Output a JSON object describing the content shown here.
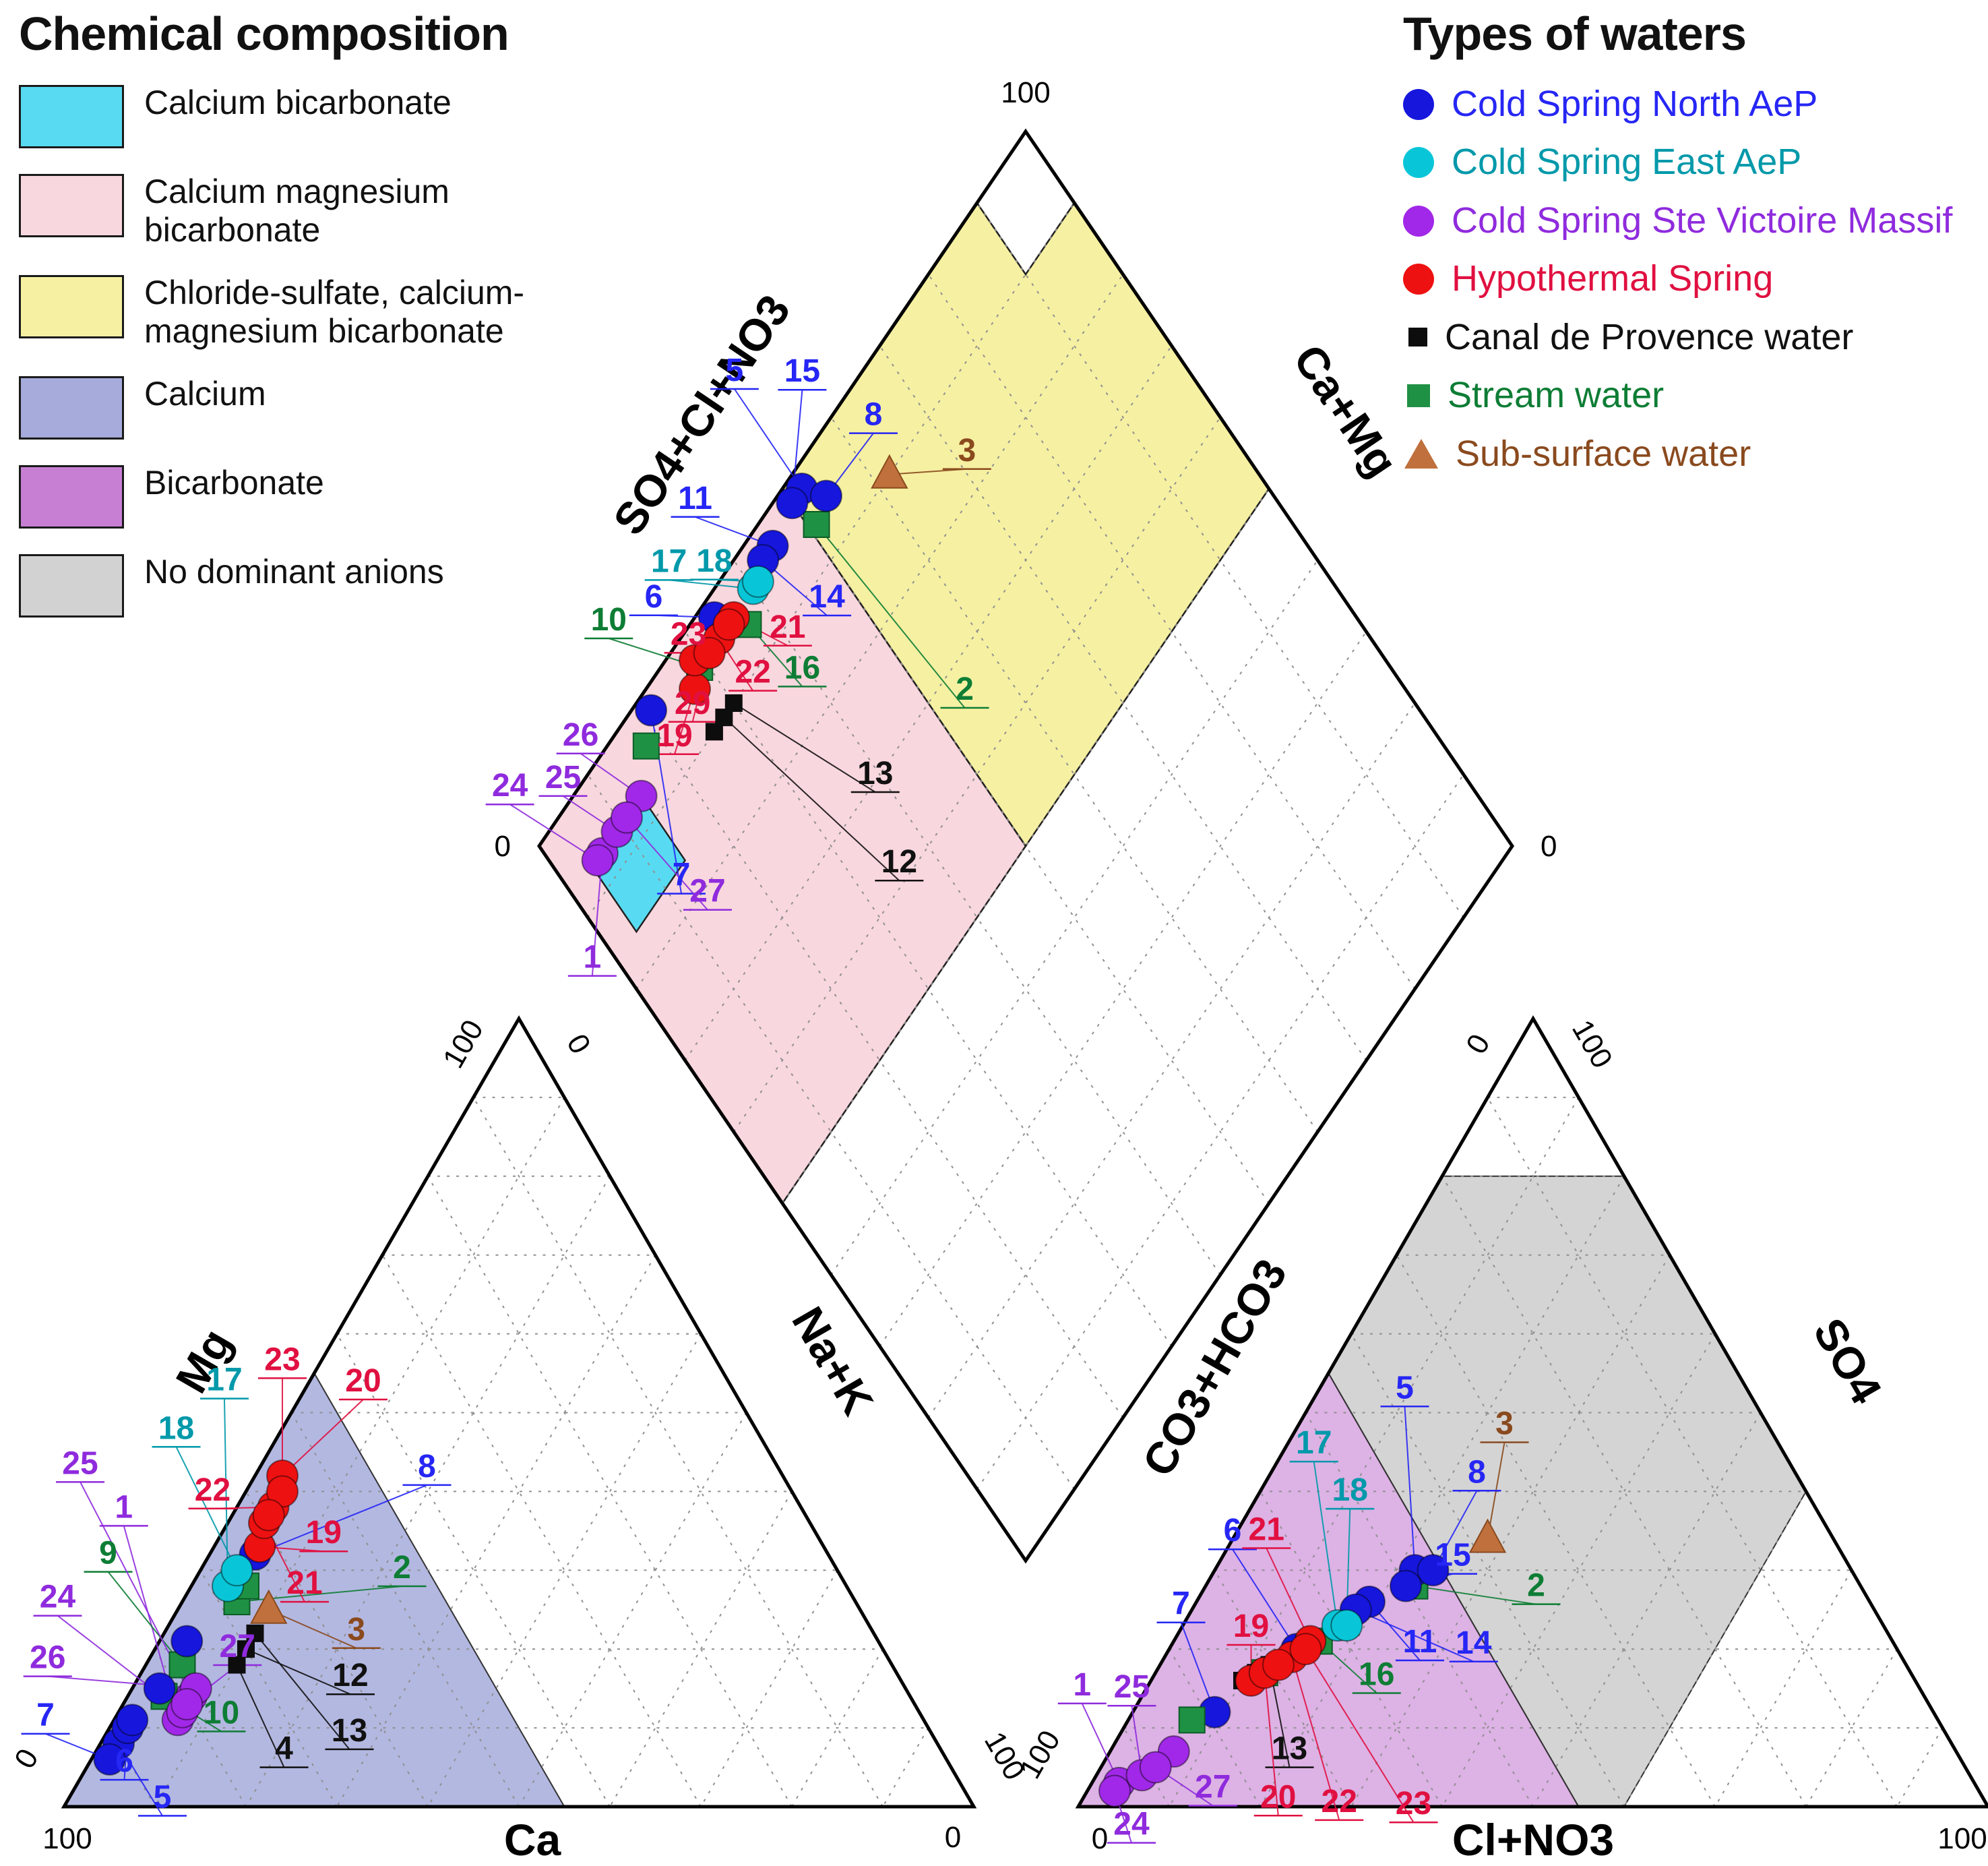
{
  "title_left": "Chemical composition",
  "title_right": "Types of waters",
  "composition_legend": [
    {
      "name": "calcium-bicarbonate",
      "label": "Calcium bicarbonate",
      "color": "#58dbf2"
    },
    {
      "name": "calcium-magnesium-bicarbonate",
      "label": "Calcium magnesium bicarbonate",
      "color": "#f9d7de"
    },
    {
      "name": "chloride-sulfate-calcium-magnesium-bicarbonate",
      "label": "Chloride-sulfate, calcium-magnesium bicarbonate",
      "color": "#f6f0a2"
    },
    {
      "name": "calcium",
      "label": "Calcium",
      "color": "#a6abdc"
    },
    {
      "name": "bicarbonate",
      "label": "Bicarbonate",
      "color": "#c77fd4"
    },
    {
      "name": "no-dominant-anions",
      "label": "No dominant anions",
      "color": "#d2d2d2"
    }
  ],
  "series": {
    "north": {
      "label": "Cold Spring North AeP",
      "marker": "circle",
      "fill": "#1616dd",
      "text": "#2626f5"
    },
    "east": {
      "label": "Cold Spring East AeP",
      "marker": "circle",
      "fill": "#08c6d8",
      "text": "#0099aa"
    },
    "ste_victoire": {
      "label": "Cold Spring Ste Victoire Massif",
      "marker": "circle",
      "fill": "#a128e8",
      "text": "#8f2bdd"
    },
    "hypothermal": {
      "label": "Hypothermal Spring",
      "marker": "circle",
      "fill": "#ee1111",
      "text": "#e01040"
    },
    "canal": {
      "label": "Canal de Provence water",
      "marker": "square-small",
      "fill": "#0d0d0d",
      "text": "#111111"
    },
    "stream": {
      "label": "Stream water",
      "marker": "square",
      "fill": "#1f9144",
      "text": "#0e7d35"
    },
    "subsurface": {
      "label": "Sub-surface water",
      "marker": "triangle",
      "fill": "#c0703c",
      "text": "#8a4a1e"
    }
  },
  "types_legend_order": [
    "north",
    "east",
    "ste_victoire",
    "hypothermal",
    "canal",
    "stream",
    "subsurface"
  ],
  "chart_data": {
    "type": "piper-trilinear",
    "axis_labels": {
      "diamond_left": "SO4+Cl+NO3",
      "diamond_right": "Ca+Mg",
      "cation_left": "Mg",
      "cation_right": "Na+K",
      "cation_bottom": "Ca",
      "anion_left": "CO3+HCO3",
      "anion_right": "SO4",
      "anion_bottom": "Cl+NO3"
    },
    "ticks": [
      {
        "id": "dia-top",
        "text": "100"
      },
      {
        "id": "dia-left",
        "text": "0"
      },
      {
        "id": "dia-right",
        "text": "0"
      },
      {
        "id": "cat-apex-l",
        "text": "100"
      },
      {
        "id": "cat-apex-r",
        "text": "0"
      },
      {
        "id": "cat-bl",
        "text": "100"
      },
      {
        "id": "cat-bl-edge",
        "text": "0"
      },
      {
        "id": "cat-br",
        "text": "0"
      },
      {
        "id": "cat-br-edge",
        "text": "100"
      },
      {
        "id": "an-apex-l",
        "text": "0"
      },
      {
        "id": "an-apex-r",
        "text": "100"
      },
      {
        "id": "an-bl",
        "text": "0"
      },
      {
        "id": "an-bl-edge",
        "text": "100"
      },
      {
        "id": "an-br",
        "text": "100"
      }
    ],
    "grid_step_percent": 10,
    "regions": {
      "diamond": [
        {
          "name": "calcium-magnesium-bicarbonate",
          "color": "#f9d7de",
          "uv": [
            [
              0,
              100
            ],
            [
              50,
              100
            ],
            [
              50,
              50
            ],
            [
              0,
              50
            ]
          ]
        },
        {
          "name": "chloride-sulfate-calcium-magnesium-bicarbonate",
          "color": "#f6f0a2",
          "uv": [
            [
              50,
              100
            ],
            [
              100,
              100
            ],
            [
              100,
              50
            ],
            [
              50,
              50
            ]
          ]
        },
        {
          "name": "diamond-top-cell",
          "color": "#ffffff",
          "uv": [
            [
              90,
              100
            ],
            [
              100,
              100
            ],
            [
              100,
              90
            ],
            [
              90,
              90
            ]
          ]
        },
        {
          "name": "calcium-bicarbonate",
          "color": "#58dbf2",
          "uv": [
            [
              4,
              94
            ],
            [
              14,
              94
            ],
            [
              14,
              84
            ],
            [
              4,
              84
            ]
          ]
        }
      ],
      "cation": [
        {
          "name": "calcium",
          "color": "#a6abdc",
          "opacity": 0.85,
          "abc": [
            [
              100,
              0,
              0
            ],
            [
              45,
              55,
              0
            ],
            [
              45,
              0,
              55
            ]
          ]
        }
      ],
      "anion": [
        {
          "name": "no-dominant-anions",
          "color": "#d2d2d2",
          "opacity": 0.95,
          "abc": [
            [
              45,
              55,
              0
            ],
            [
              20,
              80,
              0
            ],
            [
              0,
              80,
              20
            ],
            [
              0,
              40,
              60
            ],
            [
              40,
              0,
              60
            ],
            [
              45,
              0,
              55
            ]
          ]
        },
        {
          "name": "bicarbonate",
          "color": "#c77fd4",
          "opacity": 0.6,
          "abc": [
            [
              100,
              0,
              0
            ],
            [
              45,
              55,
              0
            ],
            [
              45,
              0,
              55
            ]
          ]
        }
      ]
    },
    "samples": [
      {
        "id": 1,
        "series": "ste_victoire",
        "cation": {
          "ca": 82,
          "mg": 11,
          "na_k": 7
        },
        "anion": {
          "hco3": 94,
          "so4": 3,
          "cl_no3": 3
        },
        "labels": {
          "diamond": [
            -15,
            170
          ],
          "cation": [
            -80,
            -300
          ],
          "anion": [
            -55,
            -130
          ]
        }
      },
      {
        "id": 2,
        "series": "stream",
        "cation": {
          "ca": 68,
          "mg": 26,
          "na_k": 6
        },
        "anion": {
          "hco3": 49,
          "so4": 28,
          "cl_no3": 23
        },
        "labels": {
          "diamond": [
            220,
            260
          ],
          "cation": [
            245,
            -35
          ],
          "anion": [
            180,
            15
          ]
        }
      },
      {
        "id": 3,
        "series": "subsurface",
        "cation": {
          "ca": 65,
          "mg": 25,
          "na_k": 10
        },
        "anion": {
          "hco3": 38,
          "so4": 34,
          "cl_no3": 28
        },
        "labels": {
          "diamond": [
            115,
            -20
          ],
          "cation": [
            130,
            45
          ],
          "anion": [
            25,
            -155
          ]
        }
      },
      {
        "id": 4,
        "series": "canal",
        "cation": {
          "ca": 72,
          "mg": 18,
          "na_k": 10
        },
        "anion": {
          "hco3": 74,
          "so4": 16,
          "cl_no3": 10
        },
        "labels": {
          "cation": [
            70,
            140
          ]
        }
      },
      {
        "id": 5,
        "series": "north",
        "cation": {
          "ca": 90,
          "mg": 8,
          "na_k": 2
        },
        "anion": {
          "hco3": 48,
          "so4": 30,
          "cl_no3": 22
        },
        "labels": {
          "diamond": [
            -100,
            -160
          ],
          "cation": [
            65,
            95
          ],
          "anion": [
            -15,
            -255
          ]
        }
      },
      {
        "id": 6,
        "series": "north",
        "cation": {
          "ca": 88,
          "mg": 10,
          "na_k": 2
        },
        "anion": {
          "hco3": 66,
          "so4": 20,
          "cl_no3": 14
        },
        "labels": {
          "diamond": [
            -90,
            -15
          ],
          "cation": [
            -5,
            65
          ],
          "anion": [
            -95,
            -160
          ]
        }
      },
      {
        "id": 7,
        "series": "north",
        "cation": {
          "ca": 92,
          "mg": 6,
          "na_k": 2
        },
        "anion": {
          "hco3": 79,
          "so4": 12,
          "cl_no3": 9
        },
        "labels": {
          "diamond": [
            45,
            260
          ],
          "cation": [
            -95,
            -50
          ],
          "anion": [
            -50,
            -145
          ]
        }
      },
      {
        "id": 8,
        "series": "north",
        "cation": {
          "ca": 63,
          "mg": 32,
          "na_k": 5
        },
        "anion": {
          "hco3": 46,
          "so4": 30,
          "cl_no3": 24
        },
        "labels": {
          "diamond": [
            70,
            -105
          ],
          "cation": [
            255,
            -115
          ],
          "anion": [
            65,
            -130
          ]
        }
      },
      {
        "id": 9,
        "series": "stream",
        "cation": {
          "ca": 78,
          "mg": 18,
          "na_k": 4
        },
        "anion": {
          "hco3": 82,
          "so4": 11,
          "cl_no3": 7
        },
        "labels": {
          "cation": [
            -110,
            -150
          ]
        }
      },
      {
        "id": 10,
        "series": "stream",
        "cation": {
          "ca": 82,
          "mg": 14,
          "na_k": 4
        },
        "anion": {
          "hco3": 71,
          "so4": 17,
          "cl_no3": 12
        },
        "labels": {
          "diamond": [
            -135,
            -55
          ],
          "cation": [
            85,
            40
          ]
        }
      },
      {
        "id": 11,
        "series": "north",
        "cation": {
          "ca": 82,
          "mg": 15,
          "na_k": 3
        },
        "anion": {
          "hco3": 55,
          "so4": 26,
          "cl_no3": 19
        },
        "labels": {
          "diamond": [
            -115,
            -55
          ],
          "anion": [
            75,
            75
          ]
        }
      },
      {
        "id": 12,
        "series": "canal",
        "cation": {
          "ca": 70,
          "mg": 20,
          "na_k": 10
        },
        "anion": {
          "hco3": 72,
          "so4": 17,
          "cl_no3": 11
        },
        "labels": {
          "diamond": [
            260,
            230
          ],
          "cation": [
            155,
            55
          ]
        }
      },
      {
        "id": 13,
        "series": "canal",
        "cation": {
          "ca": 68,
          "mg": 22,
          "na_k": 10
        },
        "anion": {
          "hco3": 70,
          "so4": 18,
          "cl_no3": 12
        },
        "labels": {
          "diamond": [
            210,
            120
          ],
          "cation": [
            140,
            160
          ],
          "anion": [
            30,
            140
          ]
        }
      },
      {
        "id": 14,
        "series": "north",
        "cation": {
          "ca": 76,
          "mg": 21,
          "na_k": 3
        },
        "anion": {
          "hco3": 57,
          "so4": 25,
          "cl_no3": 18
        },
        "labels": {
          "diamond": [
            95,
            70
          ],
          "anion": [
            175,
            65
          ]
        }
      },
      {
        "id": 15,
        "series": "north",
        "cation": {
          "ca": 87,
          "mg": 11,
          "na_k": 2
        },
        "anion": {
          "hco3": 50,
          "so4": 28,
          "cl_no3": 22
        },
        "labels": {
          "diamond": [
            15,
            -180
          ],
          "anion": [
            70,
            -30
          ]
        }
      },
      {
        "id": 16,
        "series": "stream",
        "cation": {
          "ca": 66,
          "mg": 28,
          "na_k": 6
        },
        "anion": {
          "hco3": 63,
          "so4": 21,
          "cl_no3": 16
        },
        "labels": {
          "diamond": [
            80,
            80
          ],
          "anion": [
            85,
            65
          ]
        }
      },
      {
        "id": 17,
        "series": "east",
        "cation": {
          "ca": 68,
          "mg": 28,
          "na_k": 4
        },
        "anion": {
          "hco3": 60,
          "so4": 23,
          "cl_no3": 17
        },
        "labels": {
          "diamond": [
            -125,
            -25
          ],
          "cation": [
            -5,
            -290
          ],
          "anion": [
            -35,
            -255
          ]
        }
      },
      {
        "id": 18,
        "series": "east",
        "cation": {
          "ca": 66,
          "mg": 30,
          "na_k": 4
        },
        "anion": {
          "hco3": 59,
          "so4": 23,
          "cl_no3": 18
        },
        "labels": {
          "diamond": [
            -65,
            -15
          ],
          "cation": [
            -90,
            -195
          ],
          "anion": [
            5,
            -185
          ]
        }
      },
      {
        "id": 19,
        "series": "hypothermal",
        "cation": {
          "ca": 62,
          "mg": 33,
          "na_k": 5
        },
        "anion": {
          "hco3": 73,
          "so4": 16,
          "cl_no3": 11
        },
        "labels": {
          "diamond": [
            -30,
            85
          ],
          "cation": [
            95,
            -5
          ],
          "anion": [
            0,
            -65
          ]
        }
      },
      {
        "id": 20,
        "series": "hypothermal",
        "cation": {
          "ca": 55,
          "mg": 42,
          "na_k": 3
        },
        "anion": {
          "hco3": 71,
          "so4": 17,
          "cl_no3": 12
        },
        "labels": {
          "cation": [
            120,
            -125
          ],
          "anion": [
            20,
            200
          ]
        }
      },
      {
        "id": 21,
        "series": "hypothermal",
        "cation": {
          "ca": 60,
          "mg": 36,
          "na_k": 4
        },
        "anion": {
          "hco3": 64,
          "so4": 21,
          "cl_no3": 15
        },
        "labels": {
          "diamond": [
            80,
            30
          ],
          "cation": [
            60,
            105
          ],
          "anion": [
            -65,
            -150
          ]
        }
      },
      {
        "id": 22,
        "series": "hypothermal",
        "cation": {
          "ca": 58,
          "mg": 38,
          "na_k": 4
        },
        "anion": {
          "hco3": 67,
          "so4": 19,
          "cl_no3": 14
        },
        "labels": {
          "diamond": [
            50,
            65
          ],
          "cation": [
            -90,
            -10
          ],
          "anion": [
            70,
            230
          ]
        }
      },
      {
        "id": 23,
        "series": "hypothermal",
        "cation": {
          "ca": 56,
          "mg": 40,
          "na_k": 4
        },
        "anion": {
          "hco3": 65,
          "so4": 20,
          "cl_no3": 15
        },
        "labels": {
          "diamond": [
            -60,
            30
          ],
          "cation": [
            0,
            -180
          ],
          "anion": [
            160,
            245
          ]
        }
      },
      {
        "id": 24,
        "series": "ste_victoire",
        "cation": {
          "ca": 81,
          "mg": 12,
          "na_k": 7
        },
        "anion": {
          "hco3": 95,
          "so4": 2,
          "cl_no3": 3
        },
        "labels": {
          "diamond": [
            -130,
            -95
          ],
          "cation": [
            -185,
            -155
          ],
          "anion": [
            25,
            65
          ]
        }
      },
      {
        "id": 25,
        "series": "ste_victoire",
        "cation": {
          "ca": 79,
          "mg": 14,
          "na_k": 7
        },
        "anion": {
          "hco3": 91,
          "so4": 4,
          "cl_no3": 5
        },
        "labels": {
          "diamond": [
            -80,
            -65
          ],
          "cation": [
            -165,
            -330
          ],
          "anion": [
            -15,
            -115
          ]
        }
      },
      {
        "id": 26,
        "series": "ste_victoire",
        "cation": {
          "ca": 78,
          "mg": 15,
          "na_k": 7
        },
        "anion": {
          "hco3": 86,
          "so4": 7,
          "cl_no3": 7
        },
        "labels": {
          "diamond": [
            -90,
            -75
          ],
          "cation": [
            -220,
            -30
          ]
        }
      },
      {
        "id": 27,
        "series": "ste_victoire",
        "cation": {
          "ca": 80,
          "mg": 13,
          "na_k": 7
        },
        "anion": {
          "hco3": 89,
          "so4": 5,
          "cl_no3": 6
        },
        "labels": {
          "diamond": [
            120,
            125
          ],
          "cation": [
            75,
            -70
          ],
          "anion": [
            85,
            45
          ]
        }
      },
      {
        "id": 29,
        "series": "hypothermal",
        "cation": {
          "ca": 59,
          "mg": 37,
          "na_k": 4
        },
        "anion": {
          "hco3": 69,
          "so4": 18,
          "cl_no3": 13
        },
        "labels": {
          "diamond": [
            -25,
            90
          ]
        }
      }
    ]
  }
}
